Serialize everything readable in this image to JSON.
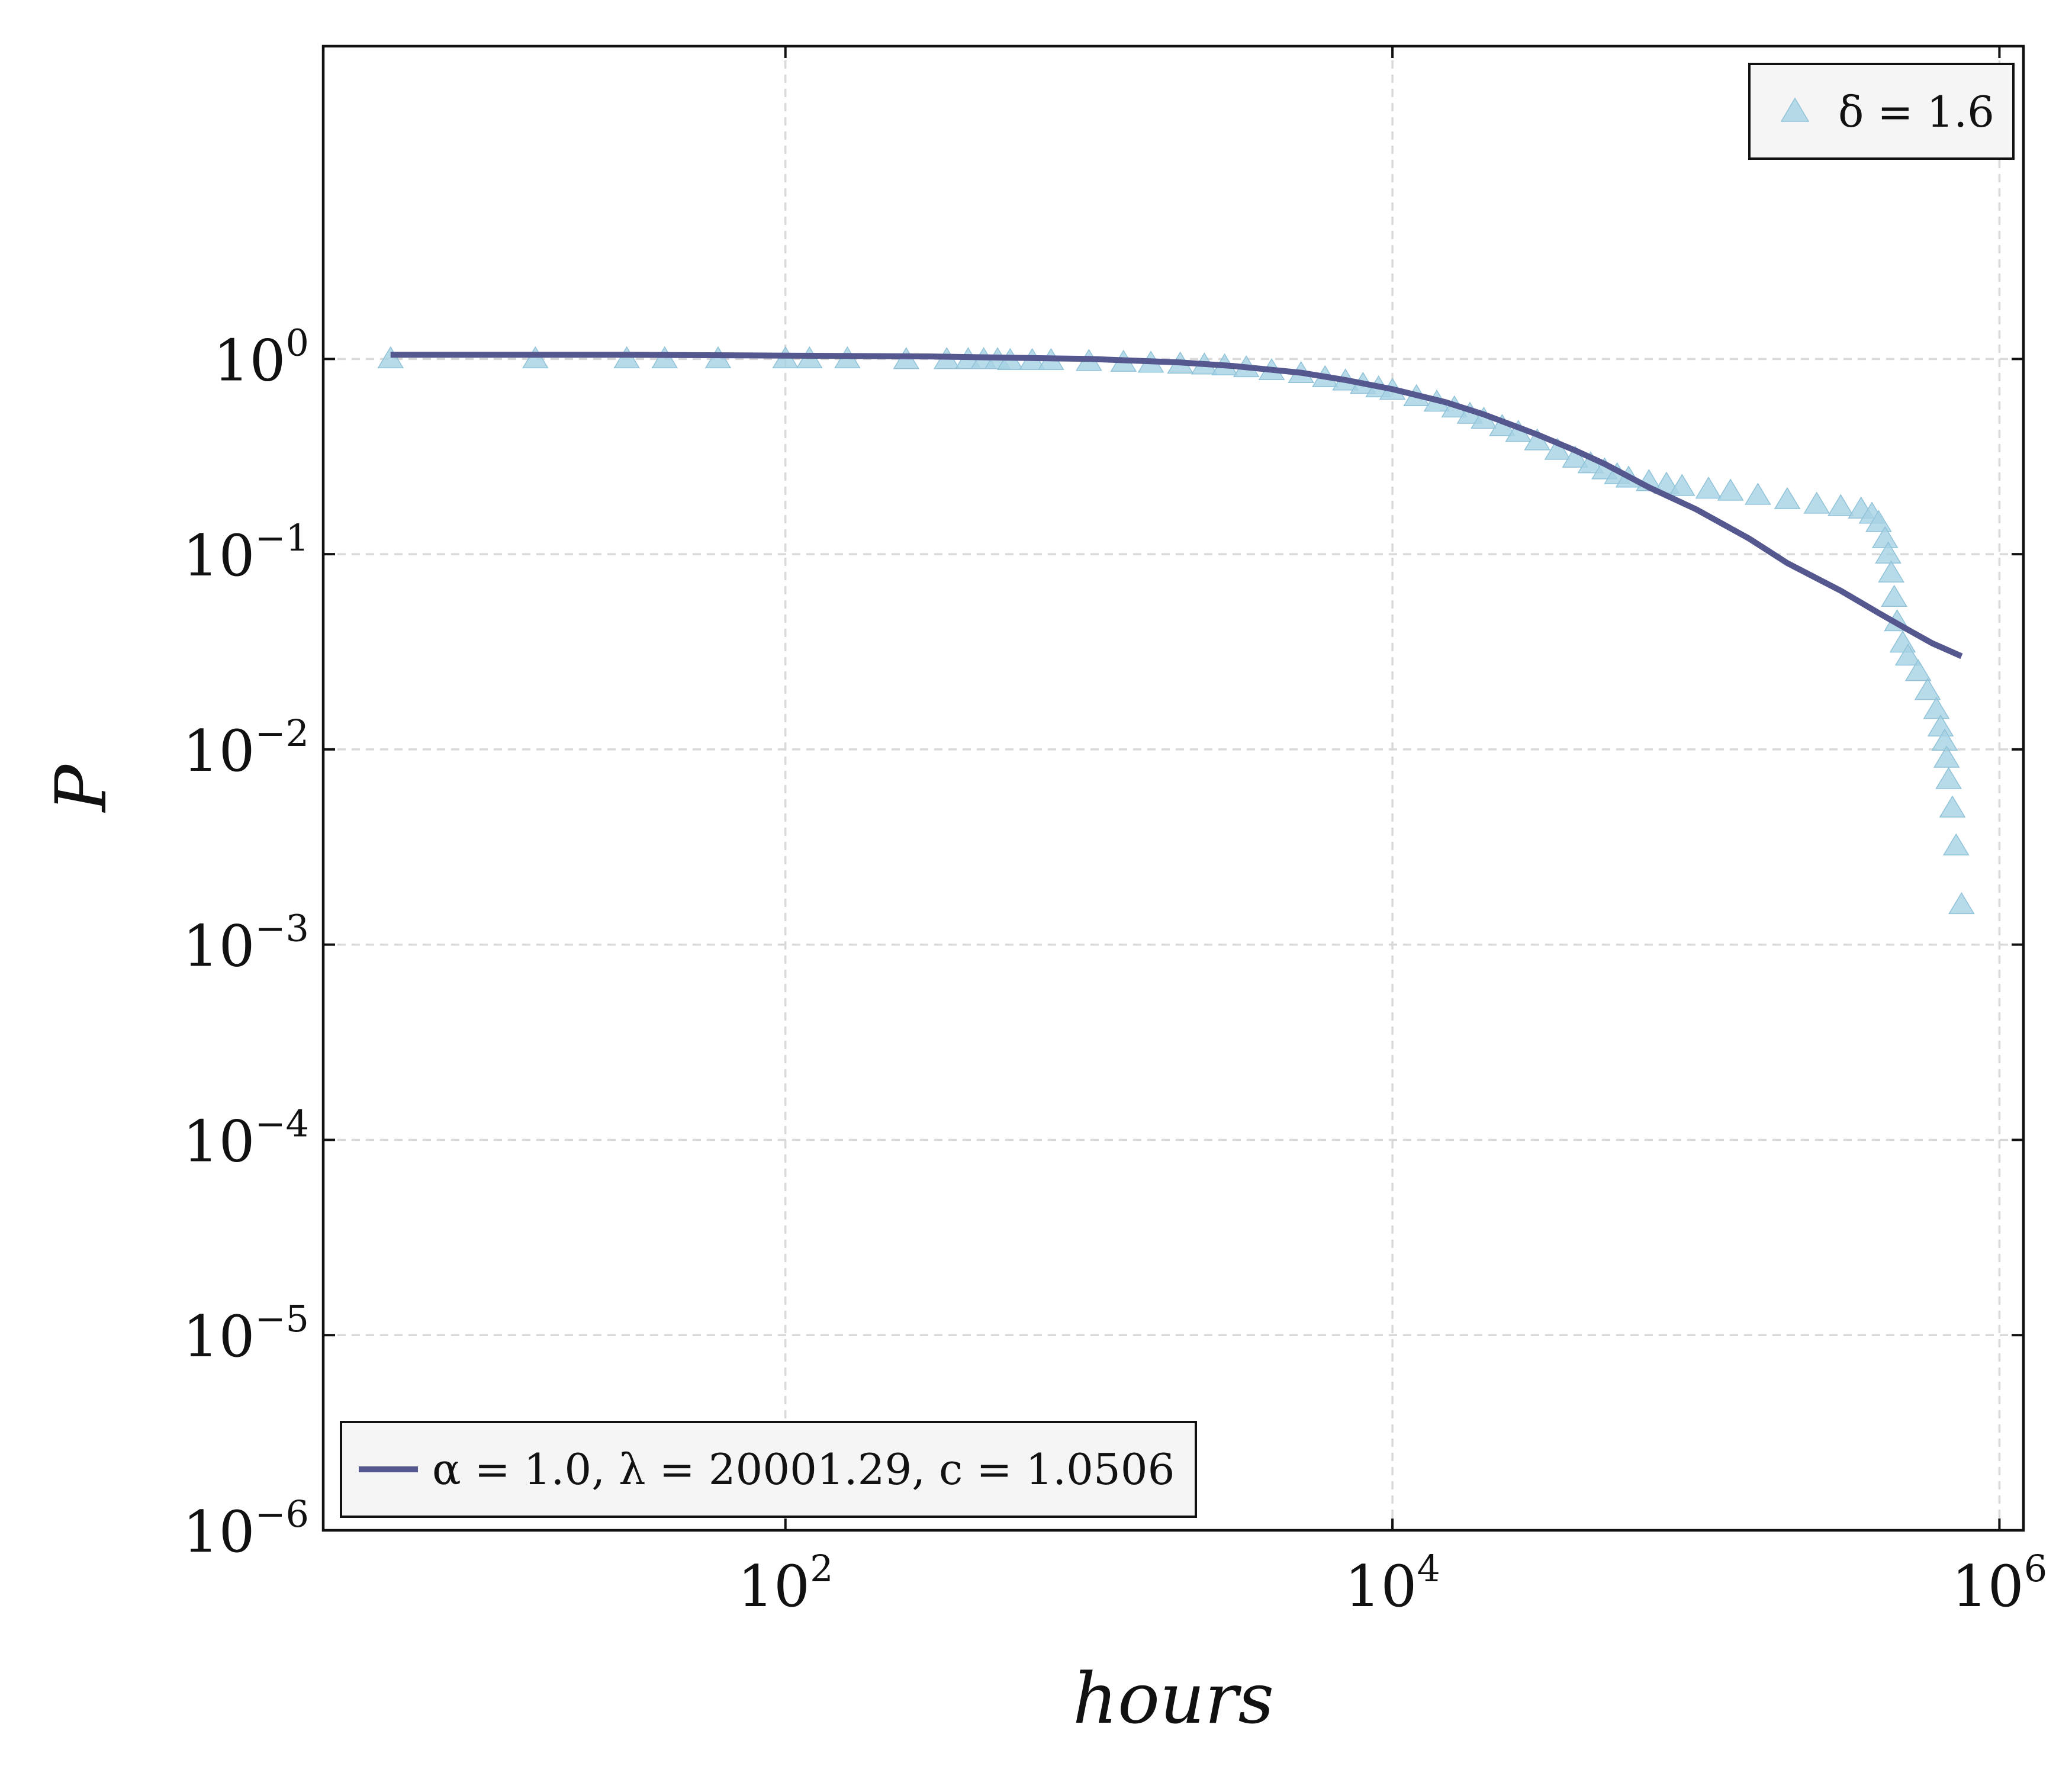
{
  "chart_data": {
    "type": "scatter",
    "xlabel": "hours",
    "ylabel": "P",
    "xscale": "log",
    "yscale": "log",
    "xlim": [
      3,
      1200000
    ],
    "ylim": [
      1e-06,
      40
    ],
    "grid": true,
    "x_ticks": [
      {
        "base": "10",
        "exp": "2",
        "value": 100
      },
      {
        "base": "10",
        "exp": "4",
        "value": 10000
      },
      {
        "base": "10",
        "exp": "6",
        "value": 1000000
      }
    ],
    "y_ticks": [
      {
        "base": "10",
        "exp": "0",
        "value": 1
      },
      {
        "base": "10",
        "exp": "−1",
        "value": 0.1
      },
      {
        "base": "10",
        "exp": "−2",
        "value": 0.01
      },
      {
        "base": "10",
        "exp": "−3",
        "value": 0.001
      },
      {
        "base": "10",
        "exp": "−4",
        "value": 0.0001
      },
      {
        "base": "10",
        "exp": "−5",
        "value": 1e-05
      },
      {
        "base": "10",
        "exp": "−6",
        "value": 1e-06
      }
    ],
    "series": [
      {
        "name": "δ = 1.6",
        "kind": "scatter",
        "marker": "triangle",
        "color": "#a6d2e4",
        "legend_position": "top-right",
        "points": [
          [
            5,
            1.0
          ],
          [
            15,
            1.0
          ],
          [
            30,
            1.0
          ],
          [
            40,
            1.0
          ],
          [
            60,
            1.0
          ],
          [
            100,
            1.0
          ],
          [
            120,
            1.0
          ],
          [
            160,
            1.0
          ],
          [
            250,
            0.99
          ],
          [
            340,
            0.99
          ],
          [
            400,
            0.99
          ],
          [
            450,
            0.99
          ],
          [
            500,
            0.99
          ],
          [
            550,
            0.98
          ],
          [
            650,
            0.98
          ],
          [
            750,
            0.98
          ],
          [
            1000,
            0.97
          ],
          [
            1300,
            0.96
          ],
          [
            1600,
            0.95
          ],
          [
            2000,
            0.94
          ],
          [
            2400,
            0.93
          ],
          [
            2800,
            0.92
          ],
          [
            3300,
            0.9
          ],
          [
            4000,
            0.87
          ],
          [
            5000,
            0.84
          ],
          [
            6000,
            0.8
          ],
          [
            7000,
            0.77
          ],
          [
            8000,
            0.74
          ],
          [
            9000,
            0.71
          ],
          [
            10000,
            0.69
          ],
          [
            12000,
            0.64
          ],
          [
            14000,
            0.6
          ],
          [
            16000,
            0.56
          ],
          [
            18000,
            0.52
          ],
          [
            20000,
            0.49
          ],
          [
            23000,
            0.45
          ],
          [
            26000,
            0.42
          ],
          [
            30000,
            0.38
          ],
          [
            35000,
            0.34
          ],
          [
            40000,
            0.31
          ],
          [
            45000,
            0.29
          ],
          [
            50000,
            0.27
          ],
          [
            55000,
            0.255
          ],
          [
            60000,
            0.245
          ],
          [
            70000,
            0.235
          ],
          [
            80000,
            0.228
          ],
          [
            90000,
            0.222
          ],
          [
            110000,
            0.215
          ],
          [
            130000,
            0.21
          ],
          [
            160000,
            0.2
          ],
          [
            200000,
            0.19
          ],
          [
            250000,
            0.18
          ],
          [
            300000,
            0.175
          ],
          [
            350000,
            0.17
          ],
          [
            380000,
            0.16
          ],
          [
            400000,
            0.145
          ],
          [
            420000,
            0.12
          ],
          [
            430000,
            0.1
          ],
          [
            440000,
            0.08
          ],
          [
            450000,
            0.06
          ],
          [
            460000,
            0.045
          ],
          [
            480000,
            0.035
          ],
          [
            500000,
            0.03
          ],
          [
            540000,
            0.025
          ],
          [
            580000,
            0.02
          ],
          [
            620000,
            0.016
          ],
          [
            640000,
            0.013
          ],
          [
            660000,
            0.011
          ],
          [
            670000,
            0.009
          ],
          [
            680000,
            0.007
          ],
          [
            700000,
            0.005
          ],
          [
            720000,
            0.0032
          ],
          [
            750000,
            0.0016
          ]
        ]
      },
      {
        "name": "α = 1.0, λ = 20001.29, c = 1.0506",
        "kind": "line",
        "color": "#55578f",
        "legend_position": "bottom-left",
        "points": [
          [
            5,
            1.05
          ],
          [
            10,
            1.05
          ],
          [
            30,
            1.05
          ],
          [
            100,
            1.04
          ],
          [
            300,
            1.03
          ],
          [
            1000,
            1.0
          ],
          [
            2000,
            0.96
          ],
          [
            3000,
            0.92
          ],
          [
            5000,
            0.85
          ],
          [
            7000,
            0.78
          ],
          [
            10000,
            0.7
          ],
          [
            15000,
            0.6
          ],
          [
            20000,
            0.52
          ],
          [
            30000,
            0.41
          ],
          [
            40000,
            0.34
          ],
          [
            50000,
            0.29
          ],
          [
            70000,
            0.22
          ],
          [
            100000,
            0.17
          ],
          [
            150000,
            0.12
          ],
          [
            200000,
            0.09
          ],
          [
            300000,
            0.065
          ],
          [
            400000,
            0.05
          ],
          [
            500000,
            0.041
          ],
          [
            600000,
            0.035
          ],
          [
            750000,
            0.03
          ]
        ]
      }
    ]
  }
}
